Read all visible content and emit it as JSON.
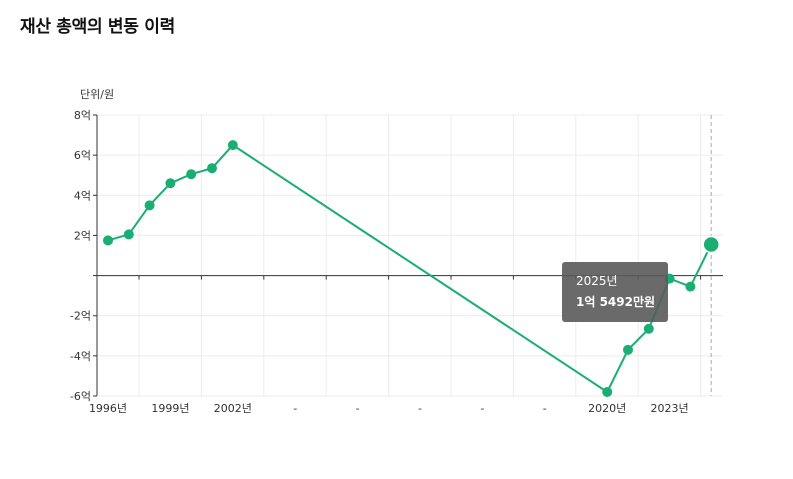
{
  "page": {
    "title": "재산 총액의 변동 이력",
    "unit_label": "단위/원"
  },
  "tooltip": {
    "year": "2025년",
    "value": "1억 5492만원"
  },
  "colors": {
    "line": "#1aae74",
    "grid": "#ececec",
    "axis": "#333333",
    "crosshair": "#aaaaaa"
  },
  "chart_data": {
    "type": "line",
    "ylim": [
      -6,
      8
    ],
    "y_ticks": [
      {
        "value": 8,
        "label": "8억"
      },
      {
        "value": 6,
        "label": "6억"
      },
      {
        "value": 4,
        "label": "4억"
      },
      {
        "value": 2,
        "label": "2억"
      },
      {
        "value": 0,
        "label": ""
      },
      {
        "value": -2,
        "label": "-2억"
      },
      {
        "value": -4,
        "label": "-4억"
      },
      {
        "value": -6,
        "label": "-6억"
      }
    ],
    "x_ticks": [
      {
        "index": 0,
        "label": "1996년"
      },
      {
        "index": 3,
        "label": "1999년"
      },
      {
        "index": 6,
        "label": "2002년"
      },
      {
        "index": 9,
        "label": "-"
      },
      {
        "index": 12,
        "label": "-"
      },
      {
        "index": 15,
        "label": "-"
      },
      {
        "index": 18,
        "label": "-"
      },
      {
        "index": 21,
        "label": "-"
      },
      {
        "index": 24,
        "label": "2020년"
      },
      {
        "index": 27,
        "label": "2023년"
      }
    ],
    "series": [
      {
        "points": [
          {
            "index": 0,
            "x": "1996년",
            "y": 1.75
          },
          {
            "index": 1,
            "x": "1997년",
            "y": 2.05
          },
          {
            "index": 2,
            "x": "1998년",
            "y": 3.5
          },
          {
            "index": 3,
            "x": "1999년",
            "y": 4.6
          },
          {
            "index": 4,
            "x": "2000년",
            "y": 5.05
          },
          {
            "index": 5,
            "x": "2001년",
            "y": 5.35
          },
          {
            "index": 6,
            "x": "2002년",
            "y": 6.5
          },
          {
            "index": 24,
            "x": "2020년",
            "y": -5.8
          },
          {
            "index": 25,
            "x": "2021년",
            "y": -3.7
          },
          {
            "index": 26,
            "x": "2022년",
            "y": -2.65
          },
          {
            "index": 27,
            "x": "2023년",
            "y": -0.15
          },
          {
            "index": 28,
            "x": "2024년",
            "y": -0.55
          },
          {
            "index": 29,
            "x": "2025년",
            "y": 1.5492
          }
        ]
      }
    ],
    "highlight_index": 29
  }
}
